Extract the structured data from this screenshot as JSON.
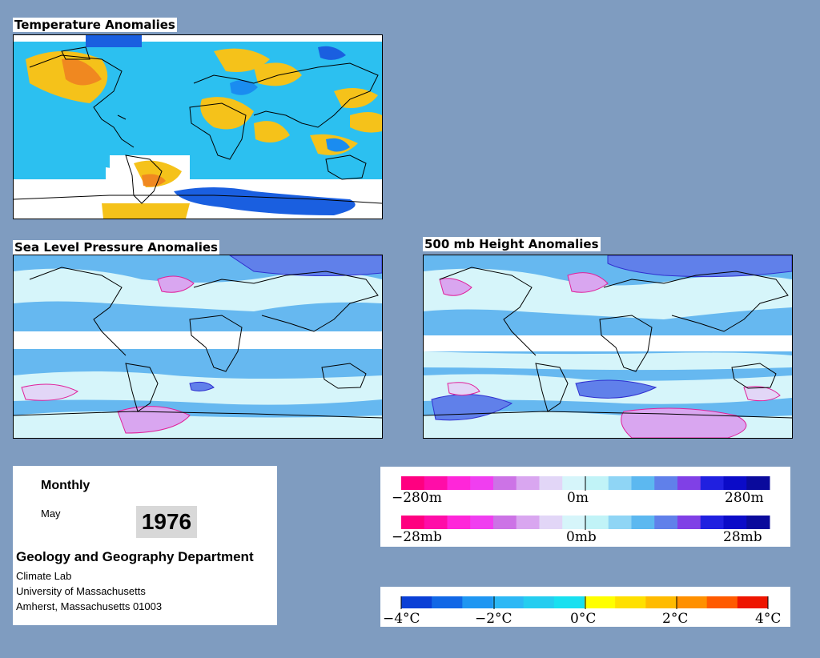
{
  "panels": {
    "temperature": {
      "title": "Temperature Anomalies"
    },
    "slp": {
      "title": "Sea Level Pressure Anomalies"
    },
    "height500": {
      "title": "500 mb Height Anomalies"
    }
  },
  "info": {
    "frequency": "Monthly",
    "month": "May",
    "year": "1976",
    "department": "Geology and Geography Department",
    "lab": "Climate Lab",
    "university": "University of Massachusetts",
    "address": "Amherst, Massachusetts 01003"
  },
  "legends": {
    "height": {
      "min": "−280m",
      "mid": "0m",
      "max": "280m"
    },
    "pressure": {
      "min": "−28mb",
      "mid": "0mb",
      "max": "28mb"
    },
    "temperature": {
      "t1": "−4°C",
      "t2": "−2°C",
      "t3": "0°C",
      "t4": "2°C",
      "t5": "4°C"
    }
  },
  "colors": {
    "background": "#7f9cc0",
    "anomaly_scale_pinkblue": [
      "#ff0080",
      "#ff0da8",
      "#ff26d9",
      "#f03ef0",
      "#cc73e6",
      "#d9a6f0",
      "#e2d6f7",
      "#d6f5fa",
      "#c1f3f7",
      "#8fd5f5",
      "#5cb8f0",
      "#6080ea",
      "#8040e6",
      "#2020e0",
      "#0b0bc8",
      "#0a0a9c"
    ],
    "temperature_scale": [
      "#0a3fd6",
      "#1167e6",
      "#1f96f2",
      "#2db8f5",
      "#25cdf0",
      "#18e0f0",
      "#ffff00",
      "#ffe000",
      "#ffbb00",
      "#ff9000",
      "#ff5a00",
      "#ee1500"
    ]
  }
}
